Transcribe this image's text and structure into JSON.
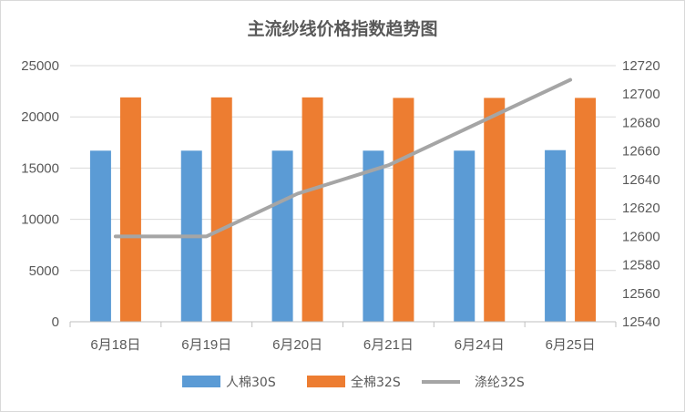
{
  "chart_data": {
    "type": "bar",
    "title": "主流纱线价格指数趋势图",
    "categories": [
      "6月18日",
      "6月19日",
      "6月20日",
      "6月21日",
      "6月24日",
      "6月25日"
    ],
    "series": [
      {
        "name": "人棉30S",
        "kind": "bar",
        "axis": "left",
        "color": "#5b9bd5",
        "values": [
          16700,
          16700,
          16700,
          16700,
          16700,
          16750
        ]
      },
      {
        "name": "全棉32S",
        "kind": "bar",
        "axis": "left",
        "color": "#ed7d31",
        "values": [
          21900,
          21900,
          21900,
          21850,
          21850,
          21850
        ]
      },
      {
        "name": "涤纶32S",
        "kind": "line",
        "axis": "right",
        "color": "#a5a5a5",
        "values": [
          12600,
          12600,
          12630,
          12650,
          12680,
          12710
        ]
      }
    ],
    "y_left": {
      "min": 0,
      "max": 25000,
      "ticks": [
        "0",
        "5000",
        "10000",
        "15000",
        "20000",
        "25000"
      ]
    },
    "y_right": {
      "min": 12540,
      "max": 12720,
      "ticks": [
        "12540",
        "12560",
        "12580",
        "12600",
        "12620",
        "12640",
        "12660",
        "12680",
        "12700",
        "12720"
      ]
    },
    "grid": true,
    "legend_position": "bottom"
  }
}
